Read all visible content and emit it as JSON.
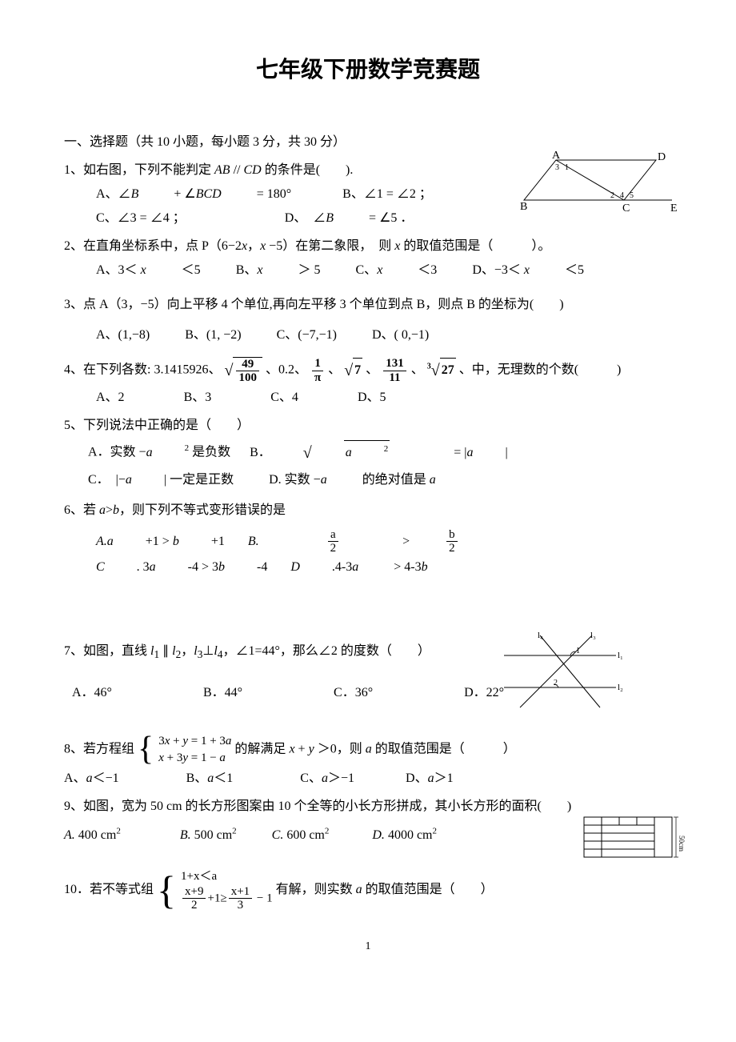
{
  "title": "七年级下册数学竞赛题",
  "section1": "一、选择题（共 10 小题，每小题 3 分，共 30 分）",
  "q1": {
    "stem": "1、如右图，下列不能判定 <span class='italic'>AB</span> // <span class='italic'>CD</span> 的条件是(　　).",
    "A": "A、∠<span class='italic'>B</span> + ∠<span class='italic'>BCD</span> = 180°",
    "B": "B、∠1 = ∠2 ；",
    "C": "C、∠3 = ∠4 ；",
    "D": "D、　∠<span class='italic'>B</span> = ∠5 ．",
    "diagram": {
      "labels": {
        "A": "A",
        "B": "B",
        "C": "C",
        "D": "D",
        "E": "E",
        "a1": "1",
        "a2": "2",
        "a3": "3",
        "a4": "4",
        "a5": "5"
      },
      "stroke": "#000000",
      "fontsize": 14,
      "angle_fontsize": 10
    }
  },
  "q2": {
    "stem": "2、在直角坐标系中，点 P（6−2<span class='italic'>x</span>，<span class='italic'>x</span> −5）在第二象限，　则 <span class='italic'>x</span> 的取值范围是（　　　）。",
    "A": "A、3＜ <span class='italic'>x</span> ＜5",
    "B": "B、<span class='italic'>x</span> ＞ 5",
    "C": "C、<span class='italic'>x</span> ＜3",
    "D": "D、−3＜ <span class='italic'>x</span> ＜5"
  },
  "q3": {
    "stem": "3、点 A（3，−5）向上平移 4 个单位,再向左平移 3 个单位到点 B，则点 B 的坐标为(　　)",
    "A": "A、(1,−8)",
    "B": "B、(1, −2)",
    "C": "C、(−7,−1)",
    "D": "D、( 0,−1)"
  },
  "q4": {
    "pre": "4、在下列各数: 3.1415926、",
    "mid1": "、0.2̇、",
    "mid2": "、",
    "mid3": "、",
    "mid4": "、",
    "post": "、中，无理数的个数(　　　)",
    "sqrt1_num": "49",
    "sqrt1_den": "100",
    "frac1_num": "1",
    "frac1_den": "π",
    "sqrt2": "7",
    "frac2_num": "131",
    "frac2_den": "11",
    "cbrt": "27",
    "A": "A、2",
    "B": "B、3",
    "C": "C、4",
    "D": "D、5"
  },
  "q5": {
    "stem": "5、下列说法中正确的是（　　）",
    "A": "A．实数 −<span class='italic'>a</span><sup>2</sup> 是负数",
    "B": "B．",
    "B2": " = |<span class='italic'>a</span>|",
    "sqrt": "a",
    "sqrt_sup": "2",
    "C": "C．　|−<span class='italic'>a</span>| 一定是正数",
    "D": "D. 实数 −<span class='italic'>a</span> 的绝对值是 <span class='italic'>a</span>"
  },
  "q6": {
    "stem": "6、若 <span class='italic'>a</span>><span class='italic'>b</span>，则下列不等式变形错误的是",
    "A": "<span class='italic'>A.a</span>+1 > <span class='italic'>b</span>+1",
    "B_pre": "<span class='italic'>B.</span>",
    "B_num1": "a",
    "B_den1": "2",
    "B_gt": ">",
    "B_num2": "b",
    "B_den2": "2",
    "C": "<span class='italic'>C</span>. 3<span class='italic'>a</span>-4 > 3<span class='italic'>b</span>-4",
    "D": "<span class='italic'>D</span>.4-3<span class='italic'>a</span> > 4-3<span class='italic'>b</span>"
  },
  "q7": {
    "stem": "7、如图，直线 <span class='italic'>l</span><sub>1</sub> ∥ <span class='italic'>l</span><sub>2</sub>，<span class='italic'>l</span><sub>3</sub>⊥<span class='italic'>l</span><sub>4</sub>，∠1=44°，那么∠2 的度数（　　）",
    "A": "A．46°",
    "B": "B．44°",
    "C": "C．36°",
    "D": "D．22°",
    "diagram": {
      "l1": "l₁",
      "l2": "l₂",
      "l3": "l₃",
      "l4": "l₄",
      "a1": "1",
      "a2": "2",
      "stroke": "#000000",
      "fontsize": 11
    }
  },
  "q8": {
    "pre": "8、若方程组",
    "r1": "3<span class='italic'>x</span> + <span class='italic'>y</span> = 1 + 3<span class='italic'>a</span>",
    "r2": "<span class='italic'>x</span> + 3<span class='italic'>y</span> = 1 − <span class='italic'>a</span>",
    "mid": " 的解满足 <span class='italic'>x</span> + <span class='italic'>y</span> ＞0，则 <span class='italic'>a</span> 的取值范围是（　　　）",
    "A": "A、<span class='italic'>a</span>＜−1",
    "B": "B、<span class='italic'>a</span>＜1",
    "C": "C、<span class='italic'>a</span>＞−1",
    "D": "D、<span class='italic'>a</span>＞1"
  },
  "q9": {
    "stem": "9、如图，宽为 50 cm 的长方形图案由 10 个全等的小长方形拼成，其小长方形的面积(　　)",
    "A": "<span class='italic'>A.</span> 400 cm<sup>2</sup>",
    "B": "<span class='italic'>B.</span> 500 cm<sup>2</sup>",
    "C": "<span class='italic'>C.</span> 600 cm<sup>2</sup>",
    "D": "<span class='italic'>D.</span> 4000 cm<sup>2</sup>",
    "diagram": {
      "label": "50cm",
      "stroke": "#000000",
      "fontsize": 9
    }
  },
  "q10": {
    "pre": "10．若不等式组",
    "r1": "1+x＜a",
    "r2_n1": "x+9",
    "r2_d1": "2",
    "r2_mid": "+1≥",
    "r2_n2": "x+1",
    "r2_d2": "3",
    "r2_end": " − 1",
    "post": "有解，则实数 <span class='italic'>a</span> 的取值范围是（　　）"
  },
  "page": "1"
}
